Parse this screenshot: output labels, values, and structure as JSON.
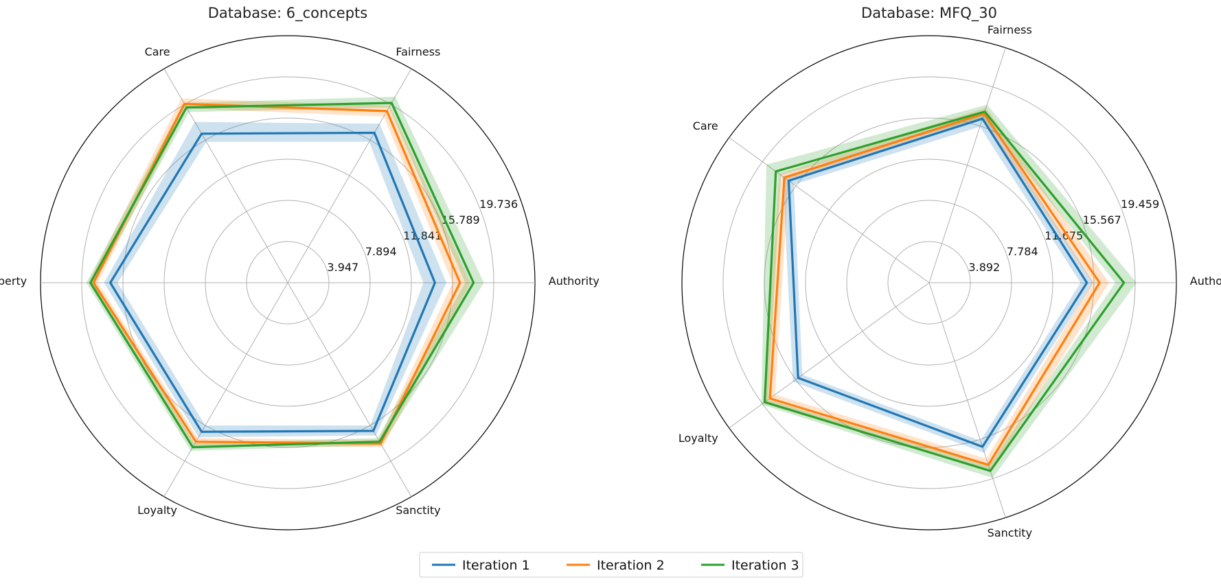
{
  "chart_data": [
    {
      "type": "radar",
      "title": "Database: 6_concepts",
      "axes": [
        "Authority",
        "Fairness",
        "Care",
        "Liberty",
        "Loyalty",
        "Sanctity"
      ],
      "rlim": [
        0,
        23.683
      ],
      "rticks": [
        3.947,
        7.894,
        11.841,
        15.789,
        19.736
      ],
      "rtick_labels": [
        "3.947",
        "7.894",
        "11.841",
        "15.789",
        "19.736"
      ],
      "grid": true,
      "series": [
        {
          "name": "Iteration 1",
          "color": "#1f77b4",
          "values": [
            14.1,
            16.6,
            16.5,
            17.0,
            16.5,
            16.4
          ],
          "band_low": [
            13.0,
            15.6,
            15.6,
            16.3,
            15.8,
            15.8
          ],
          "band_high": [
            15.2,
            17.6,
            17.8,
            17.6,
            17.1,
            16.9
          ]
        },
        {
          "name": "Iteration 2",
          "color": "#ff7f0e",
          "values": [
            16.5,
            19.0,
            19.8,
            18.6,
            17.6,
            17.8
          ],
          "band_low": [
            15.8,
            18.4,
            19.3,
            18.2,
            17.2,
            17.4
          ],
          "band_high": [
            17.5,
            19.6,
            20.4,
            19.1,
            18.0,
            18.2
          ]
        },
        {
          "name": "Iteration 3",
          "color": "#2ca02c",
          "values": [
            17.8,
            19.9,
            19.4,
            18.9,
            18.2,
            17.6
          ],
          "band_low": [
            17.0,
            19.4,
            18.9,
            18.5,
            17.8,
            17.2
          ],
          "band_high": [
            18.8,
            20.6,
            19.9,
            19.3,
            18.6,
            18.0
          ]
        }
      ]
    },
    {
      "type": "radar",
      "title": "Database: MFQ_30",
      "axes": [
        "Authority",
        "Fairness",
        "Care",
        "Loyalty",
        "Sanctity"
      ],
      "rlim": [
        0,
        23.351
      ],
      "rticks": [
        3.892,
        7.784,
        11.675,
        15.567,
        19.459
      ],
      "rtick_labels": [
        "3.892",
        "7.784",
        "11.675",
        "15.567",
        "19.459"
      ],
      "grid": true,
      "series": [
        {
          "name": "Iteration 1",
          "color": "#1f77b4",
          "values": [
            14.9,
            16.3,
            16.4,
            15.3,
            16.3
          ],
          "band_low": [
            14.3,
            15.5,
            15.8,
            14.8,
            15.7
          ],
          "band_high": [
            15.5,
            16.9,
            17.1,
            15.9,
            16.9
          ]
        },
        {
          "name": "Iteration 2",
          "color": "#ff7f0e",
          "values": [
            16.1,
            16.8,
            16.9,
            18.6,
            18.1
          ],
          "band_low": [
            15.4,
            16.3,
            16.4,
            18.0,
            17.5
          ],
          "band_high": [
            17.0,
            17.4,
            17.5,
            19.4,
            18.8
          ]
        },
        {
          "name": "Iteration 3",
          "color": "#2ca02c",
          "values": [
            18.4,
            17.0,
            17.9,
            19.2,
            18.7
          ],
          "band_low": [
            17.6,
            16.4,
            17.3,
            18.8,
            18.2
          ],
          "band_high": [
            19.6,
            17.7,
            19.0,
            19.6,
            19.4
          ]
        }
      ]
    }
  ],
  "legend": {
    "placement": "bottom-center",
    "items": [
      "Iteration 1",
      "Iteration 2",
      "Iteration 3"
    ]
  }
}
